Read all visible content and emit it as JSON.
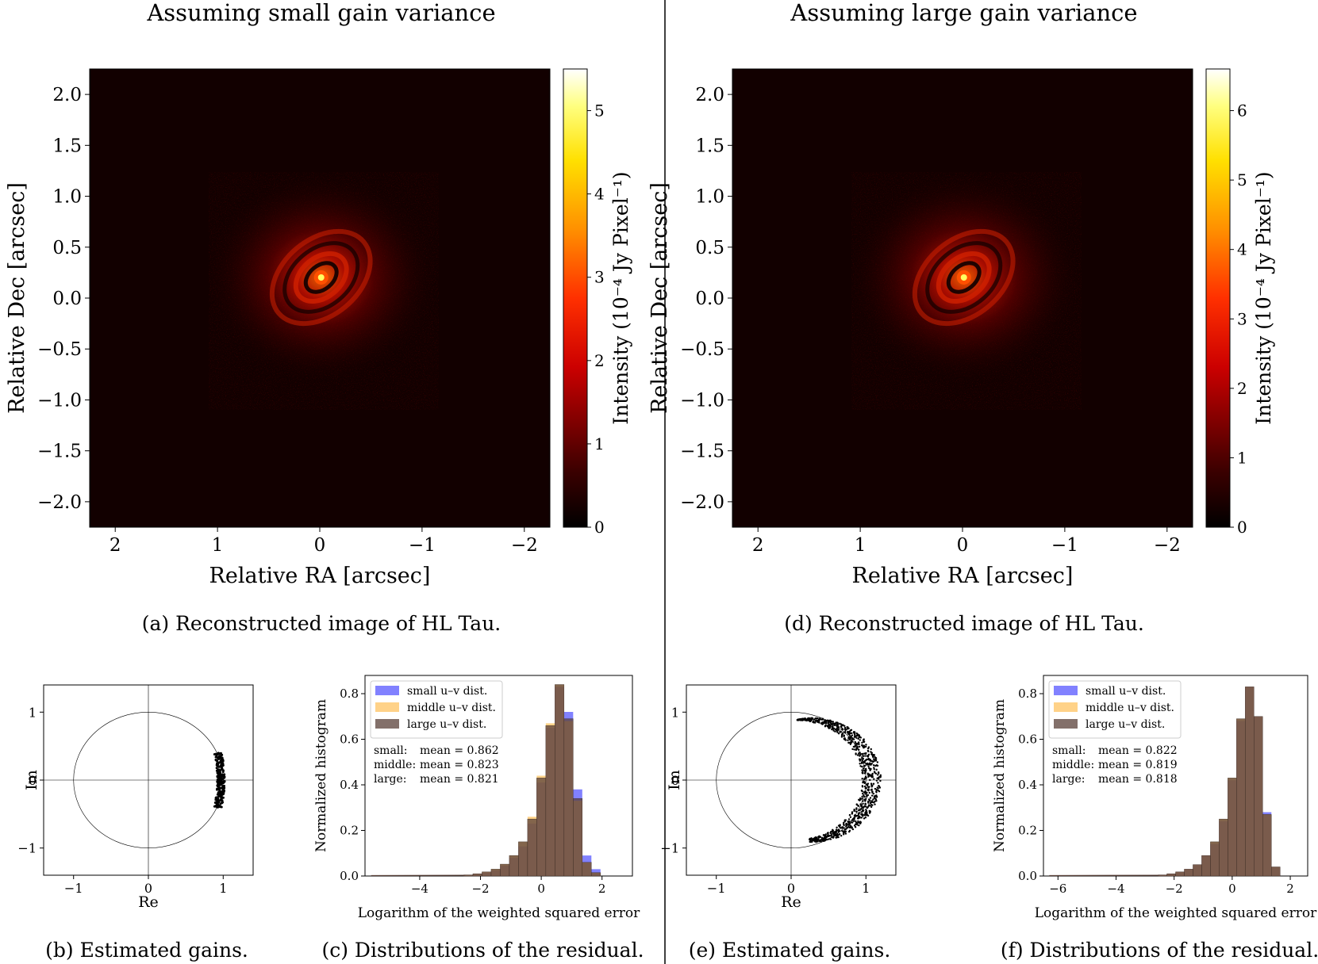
{
  "columns": [
    {
      "heading": "Assuming small gain variance",
      "image": {
        "caption": "(a) Reconstructed image of HL Tau.",
        "xlabel": "Relative RA [arcsec]",
        "ylabel": "Relative Dec [arcsec]",
        "xticks": [
          "2",
          "1",
          "0",
          "−1",
          "−2"
        ],
        "yticks": [
          "2.0",
          "1.5",
          "1.0",
          "0.5",
          "0.0",
          "−0.5",
          "−1.0",
          "−1.5",
          "−2.0"
        ],
        "colorbar_label": "Intensity (10⁻⁴ Jy Pixel⁻¹)",
        "colorbar_ticks": [
          "0",
          "1",
          "2",
          "3",
          "4",
          "5"
        ],
        "colorbar_max": 5.5
      },
      "gains": {
        "caption": "(b) Estimated gains.",
        "xlabel": "Re",
        "ylabel": "Im",
        "xticks": [
          "−1",
          "0",
          "1"
        ],
        "yticks": [
          "1",
          "0",
          "−1"
        ],
        "spread": "small"
      },
      "hist": {
        "caption": "(c) Distributions of the residual.",
        "xlabel": "Logarithm of the weighted squared error",
        "ylabel": "Normalized histogram",
        "xticks": [
          "−4",
          "−2",
          "0",
          "2"
        ],
        "yticks": [
          "0.0",
          "0.2",
          "0.4",
          "0.6",
          "0.8"
        ],
        "legend": [
          "small u–v dist.",
          "middle u–v dist.",
          "large u–v dist."
        ],
        "stats": [
          {
            "label": "small:",
            "text": "mean = 0.862"
          },
          {
            "label": "middle:",
            "text": "mean = 0.823"
          },
          {
            "label": "large:",
            "text": "mean = 0.821"
          }
        ]
      }
    },
    {
      "heading": "Assuming large gain variance",
      "image": {
        "caption": "(d) Reconstructed image of HL Tau.",
        "xlabel": "Relative RA [arcsec]",
        "ylabel": "Relative Dec [arcsec]",
        "xticks": [
          "2",
          "1",
          "0",
          "−1",
          "−2"
        ],
        "yticks": [
          "2.0",
          "1.5",
          "1.0",
          "0.5",
          "0.0",
          "−0.5",
          "−1.0",
          "−1.5",
          "−2.0"
        ],
        "colorbar_label": "Intensity (10⁻⁴ Jy Pixel⁻¹)",
        "colorbar_ticks": [
          "0",
          "1",
          "2",
          "3",
          "4",
          "5",
          "6"
        ],
        "colorbar_max": 6.6
      },
      "gains": {
        "caption": "(e) Estimated gains.",
        "xlabel": "Re",
        "ylabel": "Im",
        "xticks": [
          "−1",
          "0",
          "1"
        ],
        "yticks": [
          "1",
          "0",
          "−1"
        ],
        "spread": "large"
      },
      "hist": {
        "caption": "(f) Distributions of the residual.",
        "xlabel": "Logarithm of the weighted squared error",
        "ylabel": "Normalized histogram",
        "xticks": [
          "−6",
          "−4",
          "−2",
          "0",
          "2"
        ],
        "yticks": [
          "0.0",
          "0.2",
          "0.4",
          "0.6",
          "0.8"
        ],
        "legend": [
          "small u–v dist.",
          "middle u–v dist.",
          "large u–v dist."
        ],
        "stats": [
          {
            "label": "small:",
            "text": "mean = 0.822"
          },
          {
            "label": "middle:",
            "text": "mean = 0.819"
          },
          {
            "label": "large:",
            "text": "mean = 0.818"
          }
        ]
      }
    }
  ],
  "colors": {
    "small": "#6b6bff",
    "middle": "#ffbf55",
    "large": "#5a4038",
    "image_bg": "#120000"
  },
  "chart_data": [
    {
      "type": "heatmap",
      "panel": "a",
      "description_values": {
        "peak_ra": 0.0,
        "peak_dec": 0.2
      },
      "xlim": [
        2.25,
        -2.25
      ],
      "ylim": [
        -2.25,
        2.25
      ],
      "colorbar_range": [
        0,
        5.5
      ]
    },
    {
      "type": "scatter",
      "panel": "b",
      "xlim": [
        -1.4,
        1.4
      ],
      "ylim": [
        -1.4,
        1.4
      ],
      "unit_circle": true,
      "re_range": [
        0.88,
        1.05
      ],
      "im_range": [
        -0.42,
        0.42
      ]
    },
    {
      "type": "bar",
      "panel": "c",
      "xlim": [
        -5.8,
        3.0
      ],
      "ylim": [
        0,
        0.88
      ],
      "bin_centers": [
        -2.4,
        -2.1,
        -1.8,
        -1.5,
        -1.2,
        -0.9,
        -0.6,
        -0.3,
        0.0,
        0.3,
        0.6,
        0.9,
        1.2,
        1.5,
        1.8
      ],
      "series": [
        {
          "name": "small u–v dist.",
          "values": [
            0.004,
            0.009,
            0.015,
            0.025,
            0.045,
            0.08,
            0.13,
            0.23,
            0.41,
            0.65,
            0.83,
            0.72,
            0.38,
            0.09,
            0.03
          ]
        },
        {
          "name": "middle u–v dist.",
          "values": [
            0.005,
            0.01,
            0.018,
            0.03,
            0.052,
            0.09,
            0.15,
            0.26,
            0.44,
            0.67,
            0.84,
            0.68,
            0.33,
            0.06,
            0.015
          ]
        },
        {
          "name": "large u–v dist.",
          "values": [
            0.005,
            0.01,
            0.018,
            0.03,
            0.052,
            0.09,
            0.15,
            0.25,
            0.43,
            0.66,
            0.84,
            0.69,
            0.34,
            0.06,
            0.015
          ]
        }
      ]
    },
    {
      "type": "heatmap",
      "panel": "d",
      "description_values": {
        "peak_ra": 0.0,
        "peak_dec": 0.2
      },
      "xlim": [
        2.25,
        -2.25
      ],
      "ylim": [
        -2.25,
        2.25
      ],
      "colorbar_range": [
        0,
        6.6
      ]
    },
    {
      "type": "scatter",
      "panel": "e",
      "xlim": [
        -1.4,
        1.4
      ],
      "ylim": [
        -1.4,
        1.4
      ],
      "unit_circle": true,
      "arc_angle_range_deg": [
        -80,
        90
      ],
      "re_range": [
        -0.05,
        1.18
      ]
    },
    {
      "type": "bar",
      "panel": "f",
      "xlim": [
        -6.5,
        2.6
      ],
      "ylim": [
        0,
        0.88
      ],
      "bin_centers": [
        -2.4,
        -2.1,
        -1.8,
        -1.5,
        -1.2,
        -0.9,
        -0.6,
        -0.3,
        0.0,
        0.3,
        0.6,
        0.9,
        1.2,
        1.5
      ],
      "series": [
        {
          "name": "small u–v dist.",
          "values": [
            0.005,
            0.01,
            0.018,
            0.03,
            0.05,
            0.09,
            0.14,
            0.24,
            0.42,
            0.68,
            0.83,
            0.7,
            0.28,
            0.04
          ]
        },
        {
          "name": "middle u–v dist.",
          "values": [
            0.005,
            0.01,
            0.018,
            0.03,
            0.05,
            0.09,
            0.15,
            0.25,
            0.43,
            0.69,
            0.83,
            0.7,
            0.27,
            0.04
          ]
        },
        {
          "name": "large u–v dist.",
          "values": [
            0.005,
            0.01,
            0.018,
            0.03,
            0.05,
            0.09,
            0.15,
            0.25,
            0.43,
            0.69,
            0.83,
            0.7,
            0.27,
            0.04
          ]
        }
      ]
    }
  ]
}
